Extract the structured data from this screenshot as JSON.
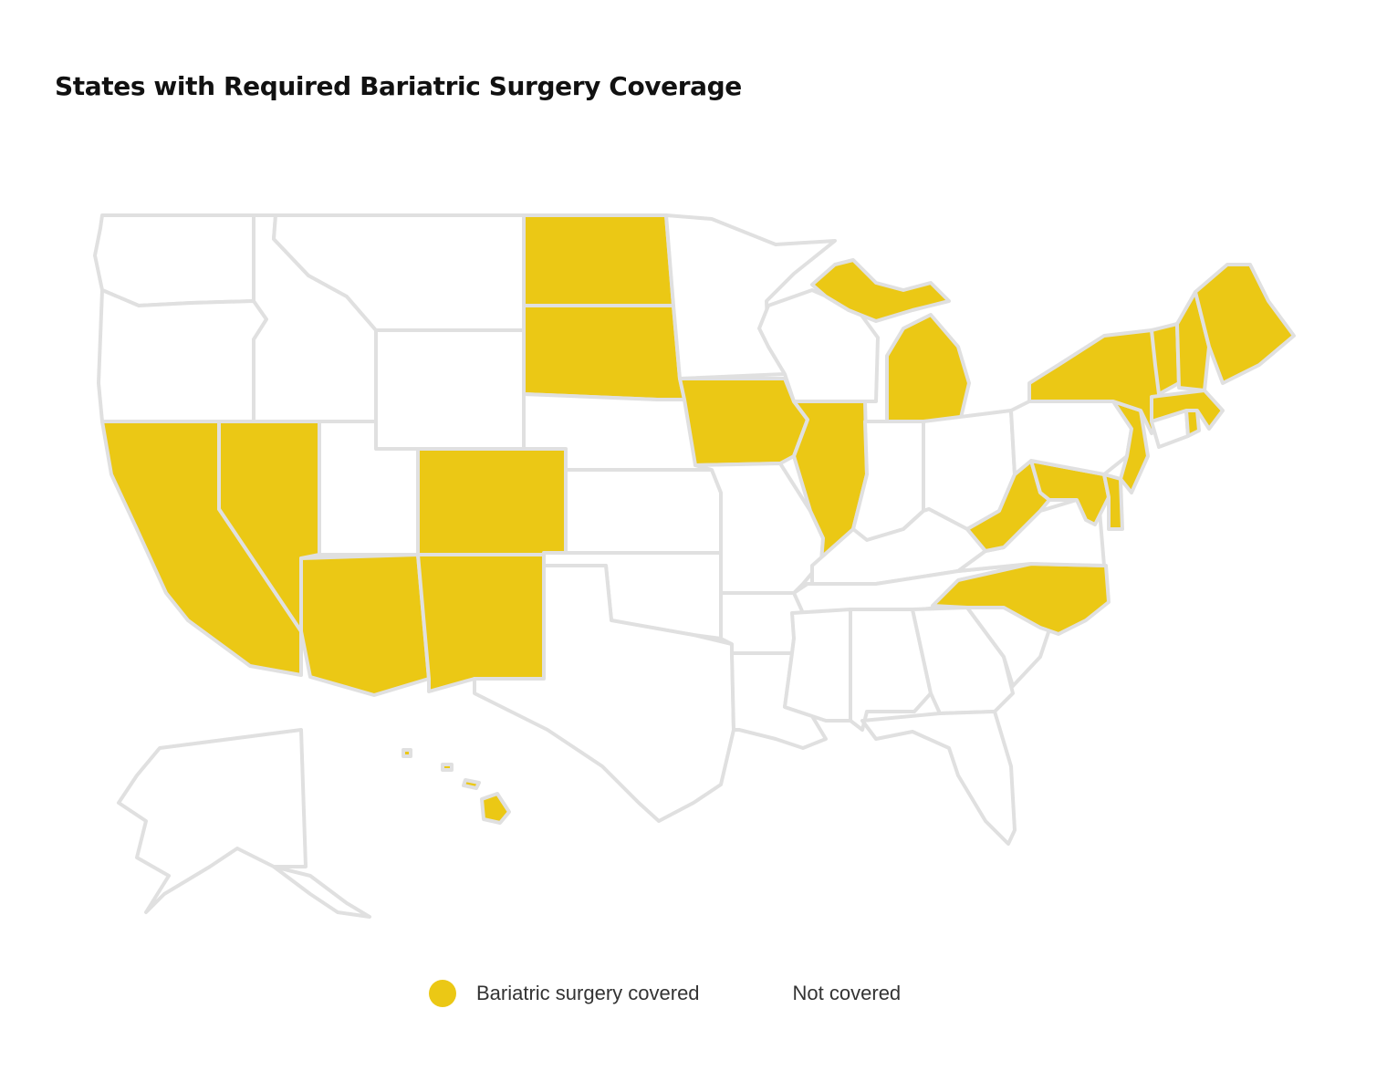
{
  "title": "States with Required Bariatric Surgery Coverage",
  "colors": {
    "covered": "#EBC815",
    "not_covered": "#ffffff",
    "border": "#e0e0e0"
  },
  "legend": {
    "covered_label": "Bariatric surgery covered",
    "not_covered_label": "Not covered"
  },
  "states": [
    {
      "name": "Washington",
      "covered": false
    },
    {
      "name": "Oregon",
      "covered": false
    },
    {
      "name": "California",
      "covered": true
    },
    {
      "name": "Nevada",
      "covered": true
    },
    {
      "name": "Idaho",
      "covered": false
    },
    {
      "name": "Montana",
      "covered": false
    },
    {
      "name": "Wyoming",
      "covered": false
    },
    {
      "name": "Utah",
      "covered": false
    },
    {
      "name": "Arizona",
      "covered": true
    },
    {
      "name": "Colorado",
      "covered": true
    },
    {
      "name": "New Mexico",
      "covered": true
    },
    {
      "name": "North Dakota",
      "covered": true
    },
    {
      "name": "South Dakota",
      "covered": true
    },
    {
      "name": "Nebraska",
      "covered": false
    },
    {
      "name": "Kansas",
      "covered": false
    },
    {
      "name": "Oklahoma",
      "covered": false
    },
    {
      "name": "Texas",
      "covered": false
    },
    {
      "name": "Minnesota",
      "covered": false
    },
    {
      "name": "Iowa",
      "covered": true
    },
    {
      "name": "Missouri",
      "covered": false
    },
    {
      "name": "Arkansas",
      "covered": false
    },
    {
      "name": "Louisiana",
      "covered": false
    },
    {
      "name": "Wisconsin",
      "covered": false
    },
    {
      "name": "Illinois",
      "covered": true
    },
    {
      "name": "Michigan",
      "covered": true
    },
    {
      "name": "Indiana",
      "covered": false
    },
    {
      "name": "Ohio",
      "covered": false
    },
    {
      "name": "Kentucky",
      "covered": false
    },
    {
      "name": "Tennessee",
      "covered": false
    },
    {
      "name": "Mississippi",
      "covered": false
    },
    {
      "name": "Alabama",
      "covered": false
    },
    {
      "name": "Georgia",
      "covered": false
    },
    {
      "name": "Florida",
      "covered": false
    },
    {
      "name": "South Carolina",
      "covered": false
    },
    {
      "name": "North Carolina",
      "covered": true
    },
    {
      "name": "Virginia",
      "covered": false
    },
    {
      "name": "West Virginia",
      "covered": true
    },
    {
      "name": "Maryland",
      "covered": true
    },
    {
      "name": "Delaware",
      "covered": true
    },
    {
      "name": "Pennsylvania",
      "covered": false
    },
    {
      "name": "New Jersey",
      "covered": true
    },
    {
      "name": "New York",
      "covered": true
    },
    {
      "name": "Connecticut",
      "covered": false
    },
    {
      "name": "Rhode Island",
      "covered": true
    },
    {
      "name": "Massachusetts",
      "covered": true
    },
    {
      "name": "Vermont",
      "covered": true
    },
    {
      "name": "New Hampshire",
      "covered": true
    },
    {
      "name": "Maine",
      "covered": true
    },
    {
      "name": "Alaska",
      "covered": false
    },
    {
      "name": "Hawaii",
      "covered": true
    }
  ]
}
